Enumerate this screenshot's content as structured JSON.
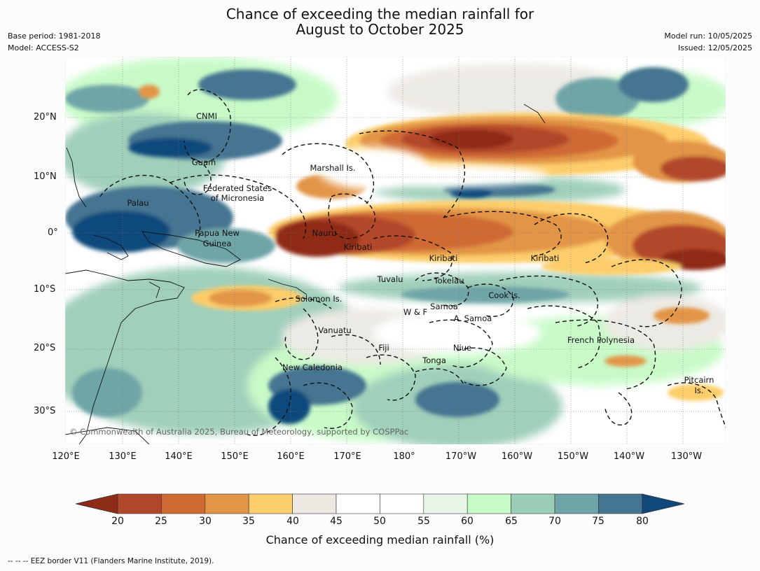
{
  "title": {
    "line1": "Chance of exceeding the median rainfall for",
    "line2": "August to October 2025"
  },
  "meta_left": [
    "Base period: 1981-2018",
    "Model: ACCESS-S2"
  ],
  "meta_right": [
    "Model run: 10/05/2025",
    "Issued: 12/05/2025"
  ],
  "lat_ticks": [
    "20°N",
    "10°N",
    "0°",
    "10°S",
    "20°S",
    "30°S"
  ],
  "lon_ticks": [
    "120°E",
    "130°E",
    "140°E",
    "150°E",
    "160°E",
    "170°E",
    "180°",
    "170°W",
    "160°W",
    "150°W",
    "140°W",
    "130°W"
  ],
  "regions": [
    {
      "name": "CNMI"
    },
    {
      "name": "Guam"
    },
    {
      "name": "Marshall Is."
    },
    {
      "name": "Federated States"
    },
    {
      "name": "of Micronesia"
    },
    {
      "name": "Palau"
    },
    {
      "name": "Papua New"
    },
    {
      "name": "Guinea"
    },
    {
      "name": "Nauru"
    },
    {
      "name": "Kiribati"
    },
    {
      "name": "Kiribati"
    },
    {
      "name": "Kiribati"
    },
    {
      "name": "Tuvalu"
    },
    {
      "name": "Tokelau"
    },
    {
      "name": "Cook Is."
    },
    {
      "name": "Solomon Is."
    },
    {
      "name": "Samoa"
    },
    {
      "name": "W & F"
    },
    {
      "name": "A. Samoa"
    },
    {
      "name": "Vanuatu"
    },
    {
      "name": "Fiji"
    },
    {
      "name": "Niue"
    },
    {
      "name": "Tonga"
    },
    {
      "name": "French Polynesia"
    },
    {
      "name": "New Caledonia"
    },
    {
      "name": "Pitcairn"
    },
    {
      "name": "Is."
    }
  ],
  "copyright": "© Commonwealth of Australia 2025, Bureau of Meteorology, supported by COSPPac",
  "colorbar": {
    "labels": [
      "20",
      "25",
      "30",
      "35",
      "40",
      "45",
      "50",
      "55",
      "60",
      "65",
      "70",
      "75",
      "80"
    ],
    "colors": [
      "#8e2b17",
      "#b3472a",
      "#cf6a34",
      "#e39546",
      "#fccd6b",
      "#ece9e3",
      "#ffffff",
      "#ffffff",
      "#e6f5e6",
      "#c6fac6",
      "#9bcdb7",
      "#6fa5a8",
      "#447591",
      "#10487b"
    ],
    "title": "Chance of exceeding median rainfall (%)"
  },
  "footnote": "--  --  -- EEZ border V11 (Flanders Marine Institute, 2019)."
}
